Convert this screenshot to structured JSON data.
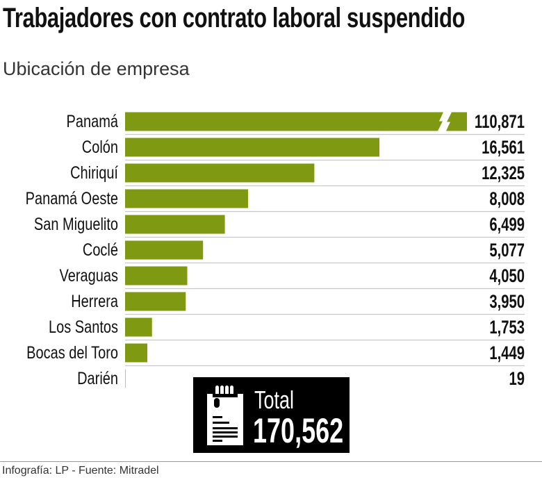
{
  "title": "Trabajadores con contrato laboral suspendido",
  "subtitle": "Ubicación de empresa",
  "footer": "Infografía: LP - Fuente: Mitradel",
  "total": {
    "label": "Total",
    "value": "170,562",
    "icon": "document-clipboard-icon"
  },
  "colors": {
    "bar": "#7f9a12",
    "grid": "#c8c8c8",
    "total_box": "#000000"
  },
  "chart_data": {
    "type": "bar",
    "orientation": "horizontal",
    "categories": [
      "Panamá",
      "Colón",
      "Chiriquí",
      "Panamá Oeste",
      "San Miguelito",
      "Coclé",
      "Veraguas",
      "Herrera",
      "Los Santos",
      "Bocas del Toro",
      "Darién"
    ],
    "values": [
      110871,
      16561,
      12325,
      8008,
      6499,
      5077,
      4050,
      3950,
      1753,
      1449,
      19
    ],
    "value_labels": [
      "110,871",
      "16,561",
      "12,325",
      "8,008",
      "6,499",
      "5,077",
      "4,050",
      "3,950",
      "1,753",
      "1,449",
      "19"
    ],
    "broken_bar": "Panamá",
    "title": "",
    "xlabel": "",
    "ylabel": ""
  }
}
